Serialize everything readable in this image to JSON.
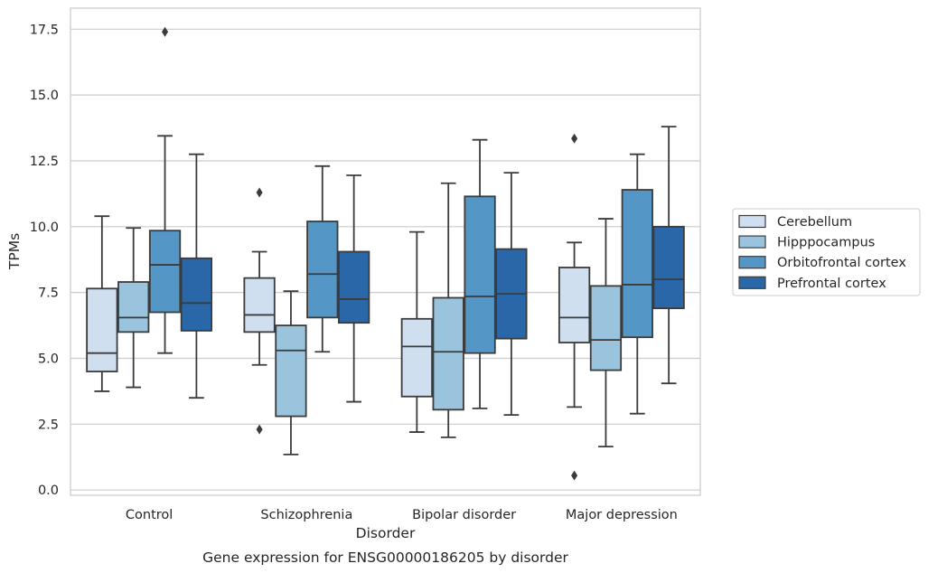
{
  "chart_data": {
    "type": "box",
    "xlabel": "Disorder",
    "ylabel": "TPMs",
    "caption": "Gene expression for ENSG00000186205 by disorder",
    "ylim": [
      -0.2,
      18.3
    ],
    "yticks": [
      0.0,
      2.5,
      5.0,
      7.5,
      10.0,
      12.5,
      15.0,
      17.5
    ],
    "ytick_labels": [
      "0.0",
      "2.5",
      "5.0",
      "7.5",
      "10.0",
      "12.5",
      "15.0",
      "17.5"
    ],
    "grid": "horizontal",
    "legend_position": "right",
    "categories": [
      "Control",
      "Schizophrenia",
      "Bipolar disorder",
      "Major depression"
    ],
    "series": [
      {
        "name": "Cerebellum",
        "color": "#cfdff0",
        "boxes": [
          {
            "whisker_low": 3.75,
            "q1": 4.5,
            "median": 5.2,
            "q3": 7.65,
            "whisker_high": 10.4,
            "outliers": []
          },
          {
            "whisker_low": 4.75,
            "q1": 6.0,
            "median": 6.65,
            "q3": 8.05,
            "whisker_high": 9.05,
            "outliers": [
              11.3,
              2.3
            ]
          },
          {
            "whisker_low": 2.2,
            "q1": 3.55,
            "median": 5.45,
            "q3": 6.5,
            "whisker_high": 9.8,
            "outliers": []
          },
          {
            "whisker_low": 3.15,
            "q1": 5.6,
            "median": 6.55,
            "q3": 8.45,
            "whisker_high": 9.4,
            "outliers": [
              13.35,
              0.55
            ]
          }
        ]
      },
      {
        "name": "Hipppocampus",
        "color": "#9ac4dd",
        "boxes": [
          {
            "whisker_low": 3.9,
            "q1": 6.0,
            "median": 6.55,
            "q3": 7.9,
            "whisker_high": 9.95,
            "outliers": []
          },
          {
            "whisker_low": 1.35,
            "q1": 2.8,
            "median": 5.3,
            "q3": 6.25,
            "whisker_high": 7.55,
            "outliers": []
          },
          {
            "whisker_low": 2.0,
            "q1": 3.05,
            "median": 5.25,
            "q3": 7.3,
            "whisker_high": 11.65,
            "outliers": []
          },
          {
            "whisker_low": 1.65,
            "q1": 4.55,
            "median": 5.7,
            "q3": 7.75,
            "whisker_high": 10.3,
            "outliers": []
          }
        ]
      },
      {
        "name": "Orbitofrontal cortex",
        "color": "#5497c6",
        "boxes": [
          {
            "whisker_low": 5.2,
            "q1": 6.75,
            "median": 8.55,
            "q3": 9.85,
            "whisker_high": 13.45,
            "outliers": [
              17.4
            ]
          },
          {
            "whisker_low": 5.25,
            "q1": 6.55,
            "median": 8.2,
            "q3": 10.2,
            "whisker_high": 12.3,
            "outliers": []
          },
          {
            "whisker_low": 3.1,
            "q1": 5.2,
            "median": 7.35,
            "q3": 11.15,
            "whisker_high": 13.3,
            "outliers": []
          },
          {
            "whisker_low": 2.9,
            "q1": 5.8,
            "median": 7.8,
            "q3": 11.4,
            "whisker_high": 12.75,
            "outliers": []
          }
        ]
      },
      {
        "name": "Prefrontal cortex",
        "color": "#2a67a9",
        "boxes": [
          {
            "whisker_low": 3.5,
            "q1": 6.05,
            "median": 7.1,
            "q3": 8.8,
            "whisker_high": 12.75,
            "outliers": []
          },
          {
            "whisker_low": 3.35,
            "q1": 6.35,
            "median": 7.25,
            "q3": 9.05,
            "whisker_high": 11.95,
            "outliers": []
          },
          {
            "whisker_low": 2.85,
            "q1": 5.75,
            "median": 7.45,
            "q3": 9.15,
            "whisker_high": 12.05,
            "outliers": []
          },
          {
            "whisker_low": 4.05,
            "q1": 6.9,
            "median": 8.0,
            "q3": 10.0,
            "whisker_high": 13.8,
            "outliers": []
          }
        ]
      }
    ]
  }
}
